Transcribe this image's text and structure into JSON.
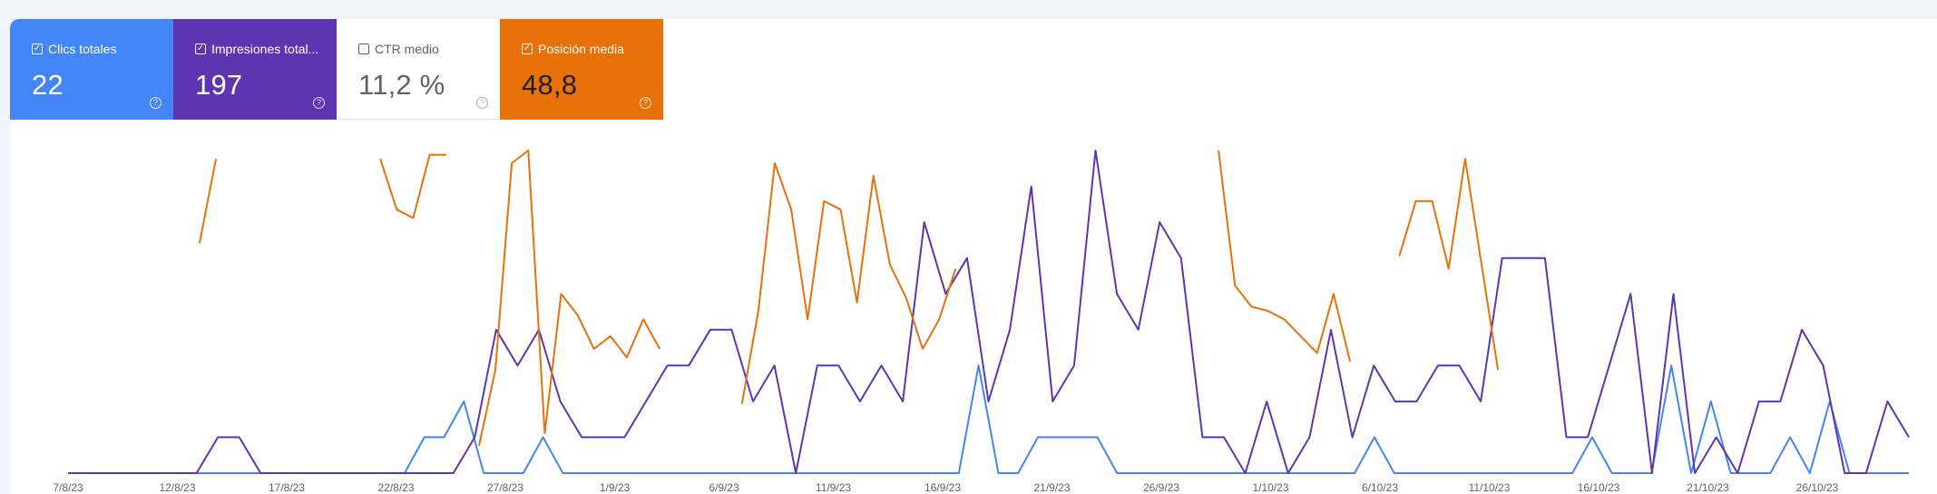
{
  "metrics": [
    {
      "label": "Clics totales",
      "value": "22",
      "checked": true,
      "color": "#4385f4"
    },
    {
      "label": "Impresiones total...",
      "value": "197",
      "checked": true,
      "color": "#5e35b1"
    },
    {
      "label": "CTR medio",
      "value": "11,2 %",
      "checked": false,
      "color": "#ffffff"
    },
    {
      "label": "Posición media",
      "value": "48,8",
      "checked": true,
      "color": "#e8710a"
    }
  ],
  "icons": {
    "checkbox": "checkbox-checked-icon",
    "help": "help-circle-icon"
  },
  "chart_data": {
    "type": "line",
    "x_ticks": [
      "7/8/23",
      "12/8/23",
      "17/8/23",
      "22/8/23",
      "27/8/23",
      "1/9/23",
      "6/9/23",
      "11/9/23",
      "16/9/23",
      "21/9/23",
      "26/9/23",
      "1/10/23",
      "6/10/23",
      "11/10/23",
      "16/10/23",
      "21/10/23",
      "26/10/23"
    ],
    "grid": false,
    "series": [
      {
        "color": "#4385f4",
        "axis": "left",
        "values": [
          0,
          0,
          0,
          0,
          0,
          0,
          0,
          0,
          0,
          0,
          0,
          0,
          0,
          0,
          0,
          0,
          0,
          0,
          1,
          1,
          2,
          0,
          0,
          0,
          1,
          0,
          0,
          0,
          0,
          0,
          0,
          0,
          0,
          0,
          0,
          0,
          0,
          0,
          0,
          0,
          0,
          0,
          0,
          0,
          0,
          0,
          3,
          0,
          0,
          1,
          1,
          1,
          1,
          0,
          0,
          0,
          0,
          0,
          0,
          0,
          0,
          0,
          0,
          0,
          0,
          0,
          1,
          0,
          0,
          0,
          0,
          0,
          0,
          0,
          0,
          0,
          0,
          1,
          0,
          0,
          0,
          3,
          0,
          2,
          0,
          0,
          0,
          1,
          0,
          2,
          0,
          0,
          0,
          0
        ]
      },
      {
        "color": "#5e35b1",
        "axis": "left",
        "values": [
          0,
          0,
          0,
          0,
          0,
          0,
          0,
          1,
          1,
          0,
          0,
          0,
          0,
          0,
          0,
          0,
          0,
          0,
          0,
          1,
          4,
          3,
          4,
          2,
          1,
          1,
          1,
          2,
          3,
          3,
          4,
          4,
          2,
          3,
          0,
          3,
          3,
          2,
          3,
          2,
          7,
          5,
          6,
          2,
          4,
          8,
          2,
          3,
          9,
          5,
          4,
          7,
          6,
          1,
          1,
          0,
          2,
          0,
          1,
          4,
          1,
          3,
          2,
          2,
          3,
          3,
          2,
          6,
          6,
          6,
          1,
          1,
          3,
          5,
          0,
          5,
          0,
          1,
          0,
          2,
          2,
          4,
          3,
          0,
          0,
          2,
          1
        ]
      },
      {
        "color": "#e8710a",
        "axis": "right",
        "values": [
          null,
          null,
          null,
          null,
          null,
          null,
          null,
          null,
          30,
          10,
          null,
          null,
          null,
          null,
          null,
          null,
          null,
          null,
          null,
          10,
          22,
          24,
          9,
          9,
          null,
          78,
          60,
          11,
          8,
          75,
          42,
          47,
          55,
          52,
          57,
          48,
          55,
          null,
          null,
          null,
          null,
          68,
          46,
          11,
          22,
          48,
          20,
          22,
          44,
          14,
          35,
          43,
          55,
          48,
          36,
          null,
          null,
          null,
          null,
          null,
          null,
          null,
          null,
          null,
          null,
          null,
          null,
          null,
          null,
          null,
          8,
          40,
          45,
          46,
          48,
          52,
          56,
          42,
          58,
          null,
          null,
          33,
          20,
          20,
          36,
          10,
          35,
          60,
          null,
          null,
          null,
          null,
          null,
          null,
          null,
          null,
          null,
          null,
          null,
          null,
          null,
          null,
          null,
          null,
          null,
          null,
          null,
          null,
          null,
          null,
          null,
          null,
          null
        ]
      }
    ]
  }
}
